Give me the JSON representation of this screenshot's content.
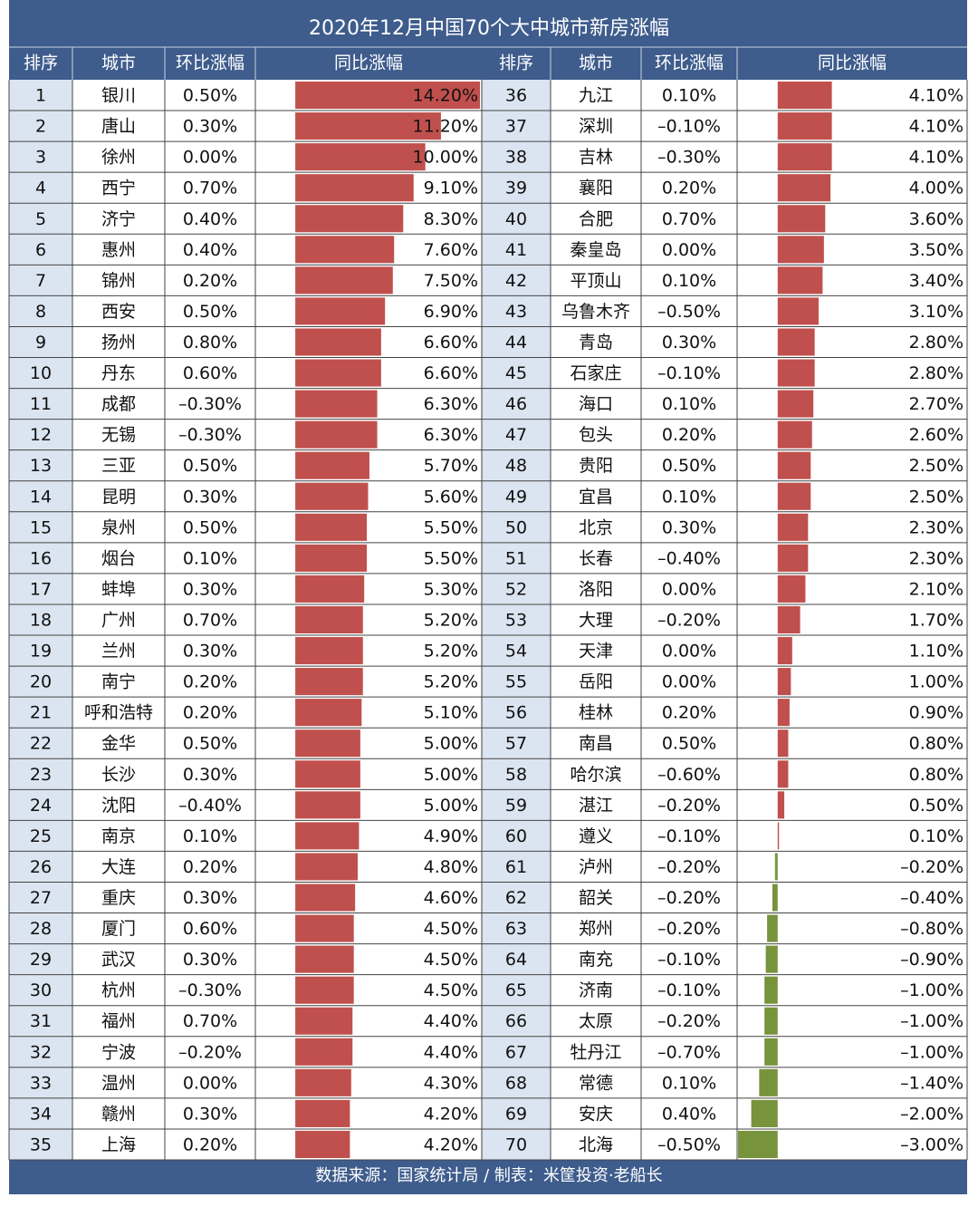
{
  "title": "2020年12月中国70个大中城市新房涨幅",
  "headers": [
    "排序",
    "城市",
    "环比涨幅",
    "同比涨幅"
  ],
  "rows": [
    [
      1,
      "银川",
      "0.50%",
      {
        "value": 14.2,
        "label": "14.20%"
      }
    ],
    [
      2,
      "唐山",
      "0.30%",
      {
        "value": 11.2,
        "label": "11.20%"
      }
    ],
    [
      3,
      "徐州",
      "0.00%",
      {
        "value": 10.0,
        "label": "10.00%"
      }
    ],
    [
      4,
      "西宁",
      "0.70%",
      {
        "value": 9.1,
        "label": "9.10%"
      }
    ],
    [
      5,
      "济宁",
      "0.40%",
      {
        "value": 8.3,
        "label": "8.30%"
      }
    ],
    [
      6,
      "惠州",
      "0.40%",
      {
        "value": 7.6,
        "label": "7.60%"
      }
    ],
    [
      7,
      "锦州",
      "0.20%",
      {
        "value": 7.5,
        "label": "7.50%"
      }
    ],
    [
      8,
      "西安",
      "0.50%",
      {
        "value": 6.9,
        "label": "6.90%"
      }
    ],
    [
      9,
      "扬州",
      "0.80%",
      {
        "value": 6.6,
        "label": "6.60%"
      }
    ],
    [
      10,
      "丹东",
      "0.60%",
      {
        "value": 6.6,
        "label": "6.60%"
      }
    ],
    [
      11,
      "成都",
      "–0.30%",
      {
        "value": 6.3,
        "label": "6.30%"
      }
    ],
    [
      12,
      "无锡",
      "–0.30%",
      {
        "value": 6.3,
        "label": "6.30%"
      }
    ],
    [
      13,
      "三亚",
      "0.50%",
      {
        "value": 5.7,
        "label": "5.70%"
      }
    ],
    [
      14,
      "昆明",
      "0.30%",
      {
        "value": 5.6,
        "label": "5.60%"
      }
    ],
    [
      15,
      "泉州",
      "0.50%",
      {
        "value": 5.5,
        "label": "5.50%"
      }
    ],
    [
      16,
      "烟台",
      "0.10%",
      {
        "value": 5.5,
        "label": "5.50%"
      }
    ],
    [
      17,
      "蚌埠",
      "0.30%",
      {
        "value": 5.3,
        "label": "5.30%"
      }
    ],
    [
      18,
      "广州",
      "0.70%",
      {
        "value": 5.2,
        "label": "5.20%"
      }
    ],
    [
      19,
      "兰州",
      "0.30%",
      {
        "value": 5.2,
        "label": "5.20%"
      }
    ],
    [
      20,
      "南宁",
      "0.20%",
      {
        "value": 5.2,
        "label": "5.20%"
      }
    ],
    [
      21,
      "呼和浩特",
      "0.20%",
      {
        "value": 5.1,
        "label": "5.10%"
      }
    ],
    [
      22,
      "金华",
      "0.50%",
      {
        "value": 5.0,
        "label": "5.00%"
      }
    ],
    [
      23,
      "长沙",
      "0.30%",
      {
        "value": 5.0,
        "label": "5.00%"
      }
    ],
    [
      24,
      "沈阳",
      "–0.40%",
      {
        "value": 5.0,
        "label": "5.00%"
      }
    ],
    [
      25,
      "南京",
      "0.10%",
      {
        "value": 4.9,
        "label": "4.90%"
      }
    ],
    [
      26,
      "大连",
      "0.20%",
      {
        "value": 4.8,
        "label": "4.80%"
      }
    ],
    [
      27,
      "重庆",
      "0.30%",
      {
        "value": 4.6,
        "label": "4.60%"
      }
    ],
    [
      28,
      "厦门",
      "0.60%",
      {
        "value": 4.5,
        "label": "4.50%"
      }
    ],
    [
      29,
      "武汉",
      "0.30%",
      {
        "value": 4.5,
        "label": "4.50%"
      }
    ],
    [
      30,
      "杭州",
      "–0.30%",
      {
        "value": 4.5,
        "label": "4.50%"
      }
    ],
    [
      31,
      "福州",
      "0.70%",
      {
        "value": 4.4,
        "label": "4.40%"
      }
    ],
    [
      32,
      "宁波",
      "–0.20%",
      {
        "value": 4.4,
        "label": "4.40%"
      }
    ],
    [
      33,
      "温州",
      "0.00%",
      {
        "value": 4.3,
        "label": "4.30%"
      }
    ],
    [
      34,
      "赣州",
      "0.30%",
      {
        "value": 4.2,
        "label": "4.20%"
      }
    ],
    [
      35,
      "上海",
      "0.20%",
      {
        "value": 4.2,
        "label": "4.20%"
      }
    ],
    [
      36,
      "九江",
      "0.10%",
      {
        "value": 4.1,
        "label": "4.10%"
      }
    ],
    [
      37,
      "深圳",
      "–0.10%",
      {
        "value": 4.1,
        "label": "4.10%"
      }
    ],
    [
      38,
      "吉林",
      "–0.30%",
      {
        "value": 4.1,
        "label": "4.10%"
      }
    ],
    [
      39,
      "襄阳",
      "0.20%",
      {
        "value": 4.0,
        "label": "4.00%"
      }
    ],
    [
      40,
      "合肥",
      "0.70%",
      {
        "value": 3.6,
        "label": "3.60%"
      }
    ],
    [
      41,
      "秦皇岛",
      "0.00%",
      {
        "value": 3.5,
        "label": "3.50%"
      }
    ],
    [
      42,
      "平顶山",
      "0.10%",
      {
        "value": 3.4,
        "label": "3.40%"
      }
    ],
    [
      43,
      "乌鲁木齐",
      "–0.50%",
      {
        "value": 3.1,
        "label": "3.10%"
      }
    ],
    [
      44,
      "青岛",
      "0.30%",
      {
        "value": 2.8,
        "label": "2.80%"
      }
    ],
    [
      45,
      "石家庄",
      "–0.10%",
      {
        "value": 2.8,
        "label": "2.80%"
      }
    ],
    [
      46,
      "海口",
      "0.10%",
      {
        "value": 2.7,
        "label": "2.70%"
      }
    ],
    [
      47,
      "包头",
      "0.20%",
      {
        "value": 2.6,
        "label": "2.60%"
      }
    ],
    [
      48,
      "贵阳",
      "0.50%",
      {
        "value": 2.5,
        "label": "2.50%"
      }
    ],
    [
      49,
      "宜昌",
      "0.10%",
      {
        "value": 2.5,
        "label": "2.50%"
      }
    ],
    [
      50,
      "北京",
      "0.30%",
      {
        "value": 2.3,
        "label": "2.30%"
      }
    ],
    [
      51,
      "长春",
      "–0.40%",
      {
        "value": 2.3,
        "label": "2.30%"
      }
    ],
    [
      52,
      "洛阳",
      "0.00%",
      {
        "value": 2.1,
        "label": "2.10%"
      }
    ],
    [
      53,
      "大理",
      "–0.20%",
      {
        "value": 1.7,
        "label": "1.70%"
      }
    ],
    [
      54,
      "天津",
      "0.00%",
      {
        "value": 1.1,
        "label": "1.10%"
      }
    ],
    [
      55,
      "岳阳",
      "0.00%",
      {
        "value": 1.0,
        "label": "1.00%"
      }
    ],
    [
      56,
      "桂林",
      "0.20%",
      {
        "value": 0.9,
        "label": "0.90%"
      }
    ],
    [
      57,
      "南昌",
      "0.50%",
      {
        "value": 0.8,
        "label": "0.80%"
      }
    ],
    [
      58,
      "哈尔滨",
      "–0.60%",
      {
        "value": 0.8,
        "label": "0.80%"
      }
    ],
    [
      59,
      "湛江",
      "–0.20%",
      {
        "value": 0.5,
        "label": "0.50%"
      }
    ],
    [
      60,
      "遵义",
      "–0.10%",
      {
        "value": 0.1,
        "label": "0.10%"
      }
    ],
    [
      61,
      "泸州",
      "–0.20%",
      {
        "value": -0.2,
        "label": "–0.20%"
      }
    ],
    [
      62,
      "韶关",
      "–0.20%",
      {
        "value": -0.4,
        "label": "–0.40%"
      }
    ],
    [
      63,
      "郑州",
      "–0.20%",
      {
        "value": -0.8,
        "label": "–0.80%"
      }
    ],
    [
      64,
      "南充",
      "–0.10%",
      {
        "value": -0.9,
        "label": "–0.90%"
      }
    ],
    [
      65,
      "济南",
      "–0.10%",
      {
        "value": -1.0,
        "label": "–1.00%"
      }
    ],
    [
      66,
      "太原",
      "–0.20%",
      {
        "value": -1.0,
        "label": "–1.00%"
      }
    ],
    [
      67,
      "牡丹江",
      "–0.70%",
      {
        "value": -1.0,
        "label": "–1.00%"
      }
    ],
    [
      68,
      "常德",
      "0.10%",
      {
        "value": -1.4,
        "label": "–1.40%"
      }
    ],
    [
      69,
      "安庆",
      "0.40%",
      {
        "value": -2.0,
        "label": "–2.00%"
      }
    ],
    [
      70,
      "北海",
      "–0.50%",
      {
        "value": -3.0,
        "label": "–3.00%"
      }
    ]
  ],
  "footer": "数据来源：国家统计局 / 制表：米筐投资·老船长"
}
